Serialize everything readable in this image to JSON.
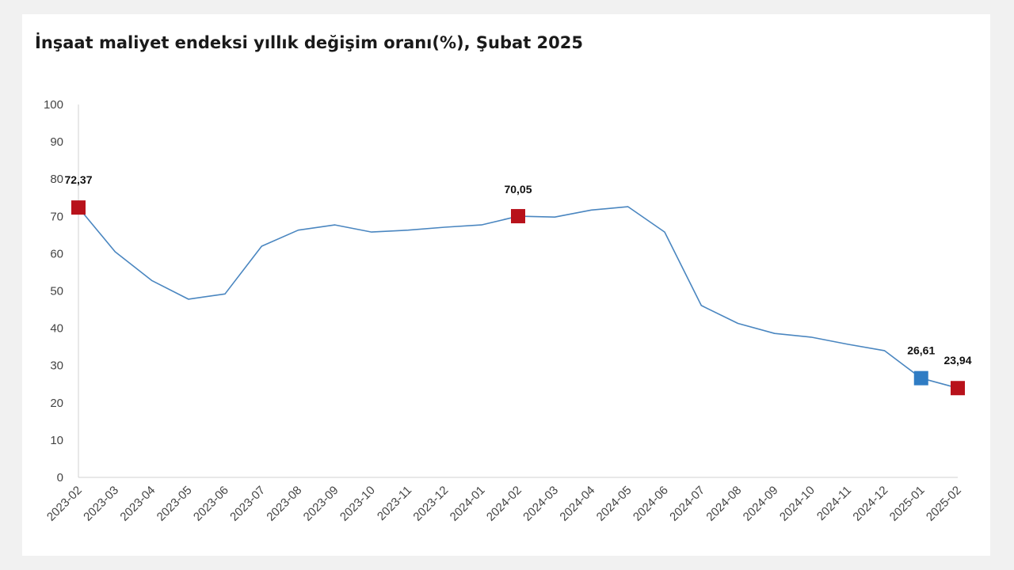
{
  "chart_data": {
    "type": "line",
    "title": "İnşaat maliyet endeksi yıllık değişim oranı(%), Şubat 2025",
    "xlabel": "",
    "ylabel": "",
    "ylim": [
      0,
      100
    ],
    "yticks": [
      "0",
      "10",
      "20",
      "30",
      "40",
      "50",
      "60",
      "70",
      "80",
      "90",
      "100"
    ],
    "grid": false,
    "categories": [
      "2023-02",
      "2023-03",
      "2023-04",
      "2023-05",
      "2023-06",
      "2023-07",
      "2023-08",
      "2023-09",
      "2023-10",
      "2023-11",
      "2023-12",
      "2024-01",
      "2024-02",
      "2024-03",
      "2024-04",
      "2024-05",
      "2024-06",
      "2024-07",
      "2024-08",
      "2024-09",
      "2024-10",
      "2024-11",
      "2024-12",
      "2025-01",
      "2025-02"
    ],
    "series": [
      {
        "values": [
          72.37,
          60.5,
          52.8,
          47.8,
          49.2,
          62.0,
          66.3,
          67.7,
          65.8,
          66.3,
          67.1,
          67.7,
          70.05,
          69.8,
          71.7,
          72.6,
          65.8,
          46.1,
          41.3,
          38.6,
          37.6,
          35.7,
          34.0,
          26.61,
          23.94
        ],
        "color": "#4a86c0"
      }
    ],
    "annotations": [
      {
        "category": "2023-02",
        "value": 72.37,
        "label": "72,37",
        "marker_color": "#b8121b"
      },
      {
        "category": "2024-02",
        "value": 70.05,
        "label": "70,05",
        "marker_color": "#b8121b"
      },
      {
        "category": "2025-01",
        "value": 26.61,
        "label": "26,61",
        "marker_color": "#2f7cc4"
      },
      {
        "category": "2025-02",
        "value": 23.94,
        "label": "23,94",
        "marker_color": "#b8121b"
      }
    ]
  }
}
